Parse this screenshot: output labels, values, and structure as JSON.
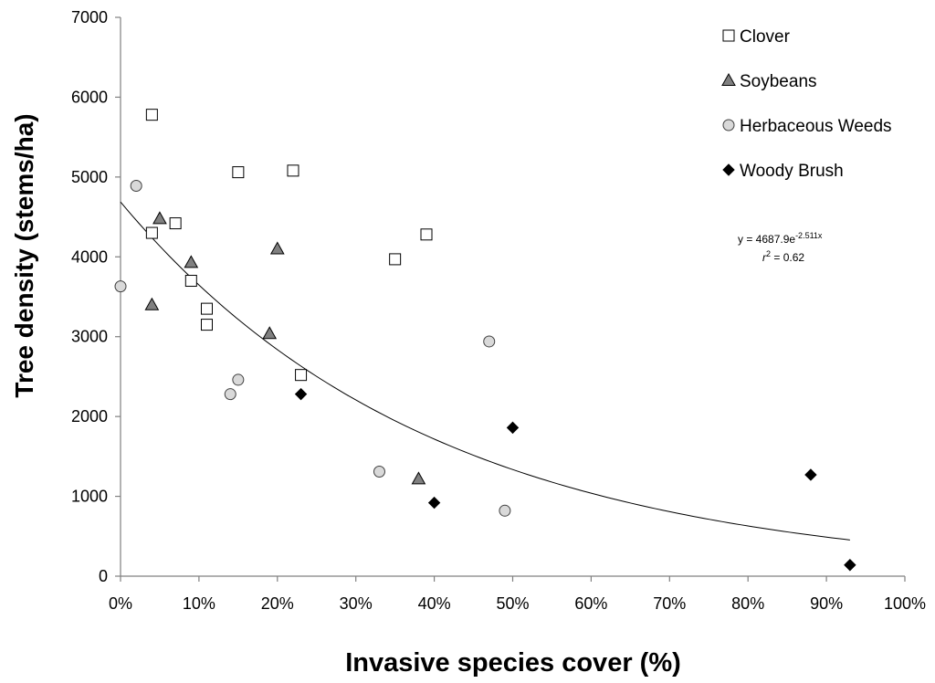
{
  "chart_data": {
    "type": "scatter",
    "title": "",
    "xlabel": "Invasive species cover (%)",
    "ylabel": "Tree density (stems/ha)",
    "xlim": [
      0,
      100
    ],
    "ylim": [
      0,
      7000
    ],
    "x_ticks": [
      0,
      10,
      20,
      30,
      40,
      50,
      60,
      70,
      80,
      90,
      100
    ],
    "x_tick_labels": [
      "0%",
      "10%",
      "20%",
      "30%",
      "40%",
      "50%",
      "60%",
      "70%",
      "80%",
      "90%",
      "100%"
    ],
    "y_ticks": [
      0,
      1000,
      2000,
      3000,
      4000,
      5000,
      6000,
      7000
    ],
    "y_tick_labels": [
      "0",
      "1000",
      "2000",
      "3000",
      "4000",
      "5000",
      "6000",
      "7000"
    ],
    "legend_position": "top-right",
    "series": [
      {
        "name": "Clover",
        "marker": "square",
        "fill": "#ffffff",
        "stroke": "#000000",
        "points": [
          [
            4,
            5780
          ],
          [
            4,
            4300
          ],
          [
            7,
            4420
          ],
          [
            9,
            3700
          ],
          [
            11,
            3350
          ],
          [
            11,
            3150
          ],
          [
            15,
            5060
          ],
          [
            22,
            5080
          ],
          [
            23,
            2520
          ],
          [
            35,
            3970
          ],
          [
            39,
            4280
          ]
        ]
      },
      {
        "name": "Soybeans",
        "marker": "triangle",
        "fill": "#808080",
        "stroke": "#000000",
        "points": [
          [
            4,
            3400
          ],
          [
            5,
            4480
          ],
          [
            9,
            3930
          ],
          [
            19,
            3040
          ],
          [
            20,
            4100
          ],
          [
            38,
            1220
          ]
        ]
      },
      {
        "name": "Herbaceous Weeds",
        "marker": "circle",
        "fill": "#d9d9d9",
        "stroke": "#404040",
        "points": [
          [
            0,
            3630
          ],
          [
            2,
            4890
          ],
          [
            14,
            2280
          ],
          [
            15,
            2460
          ],
          [
            33,
            1310
          ],
          [
            47,
            2940
          ],
          [
            49,
            820
          ]
        ]
      },
      {
        "name": "Woody Brush",
        "marker": "diamond",
        "fill": "#000000",
        "stroke": "#000000",
        "points": [
          [
            23,
            2280
          ],
          [
            40,
            920
          ],
          [
            50,
            1860
          ],
          [
            88,
            1270
          ],
          [
            93,
            140
          ]
        ]
      }
    ],
    "trendline": {
      "type": "exponential",
      "a": 4687.9,
      "b": -2.511,
      "x_range": [
        0,
        93
      ],
      "equation_label": "y = 4687.9e",
      "equation_exponent": "-2.511x",
      "r2_label": "r",
      "r2_sup": "2",
      "r2_value": " = 0.62"
    }
  }
}
